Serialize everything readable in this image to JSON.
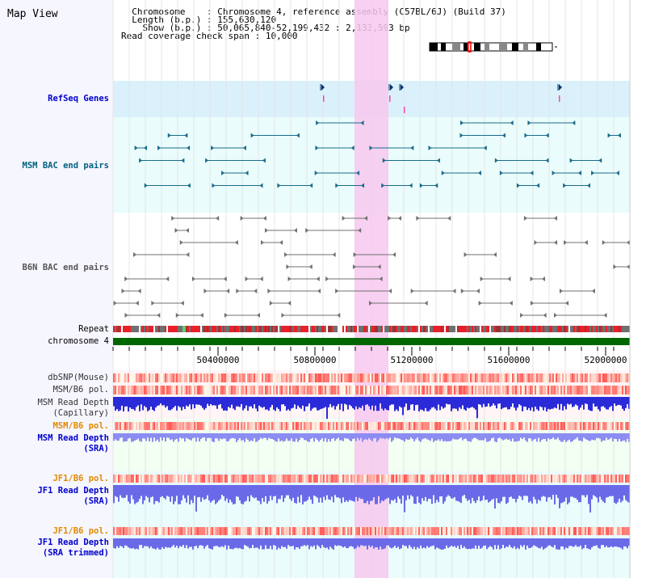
{
  "title": "Map View",
  "info": {
    "chrom_label": "Chromosome",
    "chrom_value": ": Chromosome 4, reference assembly (C57BL/6J) (Build 37)",
    "length_label": "Length (b.p.)",
    "length_value": ": 155,630,120",
    "show_label": "Show (b.p.)",
    "show_value": ": 50,065,840-52,199,432 : 2,133,593 bp",
    "coverage_label": "Read coverage check span",
    "coverage_value": ": 10,000"
  },
  "tracks": {
    "refseq": "RefSeq Genes",
    "msm_bac": "MSM BAC end pairs",
    "b6n_bac": "B6N BAC end pairs",
    "repeat": "Repeat",
    "chromosome": "chromosome 4",
    "dbsnp": "dbSNP(Mouse)",
    "msm_b6_pol_1": "MSM/B6 pol.",
    "msm_read_depth_cap_1": "MSM Read Depth",
    "msm_read_depth_cap_2": "(Capillary)",
    "msm_b6_pol_2": "MSM/B6 pol.",
    "msm_read_depth_sra_1": "MSM Read Depth",
    "msm_read_depth_sra_2": "(SRA)",
    "jf1_b6_pol_1": "JF1/B6 pol.",
    "jf1_read_depth_sra_1": "JF1 Read Depth",
    "jf1_read_depth_sra_2": "(SRA)",
    "jf1_b6_pol_2": "JF1/B6 pol.",
    "jf1_read_depth_trim_1": "JF1 Read Depth",
    "jf1_read_depth_trim_2": "(SRA trimmed)"
  },
  "axis": {
    "ticks": [
      "50400000",
      "50800000",
      "51200000",
      "51600000",
      "52000000"
    ]
  },
  "colors": {
    "blue_label": "#0000cc",
    "teal_label": "#006080",
    "orange_label": "#e08a00",
    "gray_label": "#333333",
    "highlight": "#f7c8ef",
    "chrom_green": "#006600"
  }
}
